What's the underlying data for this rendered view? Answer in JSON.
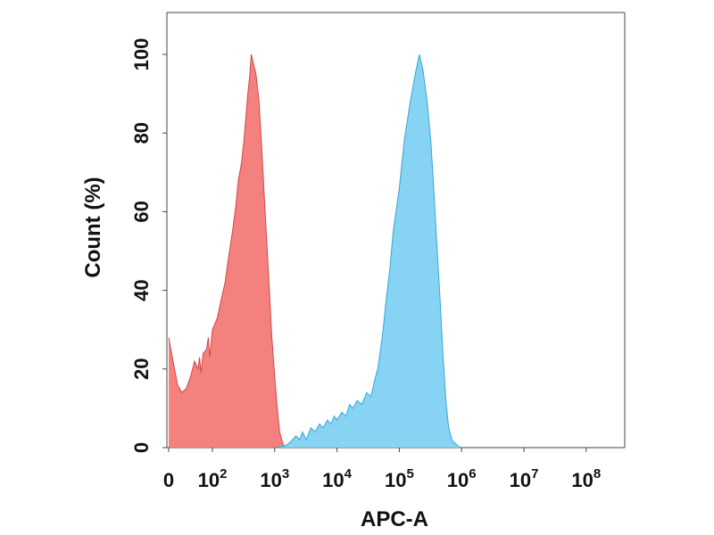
{
  "chart_data": {
    "type": "area",
    "title": "",
    "xlabel": "APC-A",
    "ylabel": "Count  (%)",
    "x_scale": "log",
    "xlim": [
      0,
      100000000
    ],
    "ylim": [
      0,
      100
    ],
    "grid": false,
    "x_ticks": [
      {
        "value": 0,
        "base": "0",
        "exp": ""
      },
      {
        "value": 100,
        "base": "10",
        "exp": "2"
      },
      {
        "value": 1000,
        "base": "10",
        "exp": "3"
      },
      {
        "value": 10000,
        "base": "10",
        "exp": "4"
      },
      {
        "value": 100000,
        "base": "10",
        "exp": "5"
      },
      {
        "value": 1000000,
        "base": "10",
        "exp": "6"
      },
      {
        "value": 10000000,
        "base": "10",
        "exp": "7"
      },
      {
        "value": 100000000,
        "base": "10",
        "exp": "8"
      }
    ],
    "y_ticks": [
      "0",
      "20",
      "40",
      "60",
      "80",
      "100"
    ],
    "series": [
      {
        "color": "#f47a78",
        "stroke": "#d04848",
        "points": [
          [
            0,
            28
          ],
          [
            1,
            22
          ],
          [
            4,
            16
          ],
          [
            9,
            14
          ],
          [
            16,
            15
          ],
          [
            25,
            18
          ],
          [
            35,
            22
          ],
          [
            45,
            20
          ],
          [
            50,
            23
          ],
          [
            55,
            19
          ],
          [
            62,
            24
          ],
          [
            75,
            25
          ],
          [
            82,
            28
          ],
          [
            88,
            23
          ],
          [
            100,
            30
          ],
          [
            120,
            33
          ],
          [
            140,
            38
          ],
          [
            160,
            42
          ],
          [
            180,
            48
          ],
          [
            210,
            55
          ],
          [
            240,
            62
          ],
          [
            260,
            68
          ],
          [
            290,
            72
          ],
          [
            320,
            78
          ],
          [
            340,
            83
          ],
          [
            370,
            90
          ],
          [
            400,
            95
          ],
          [
            420,
            100
          ],
          [
            450,
            98
          ],
          [
            500,
            95
          ],
          [
            560,
            88
          ],
          [
            600,
            80
          ],
          [
            650,
            70
          ],
          [
            700,
            60
          ],
          [
            760,
            50
          ],
          [
            820,
            40
          ],
          [
            900,
            28
          ],
          [
            1000,
            18
          ],
          [
            1100,
            10
          ],
          [
            1200,
            4
          ],
          [
            1350,
            1
          ],
          [
            1500,
            0
          ]
        ]
      },
      {
        "color": "#7fd1f2",
        "stroke": "#3aa6d4",
        "points": [
          [
            1000,
            0
          ],
          [
            1500,
            0.5
          ],
          [
            1800,
            1.5
          ],
          [
            2200,
            3
          ],
          [
            2500,
            2
          ],
          [
            2800,
            4
          ],
          [
            3200,
            2
          ],
          [
            3800,
            5
          ],
          [
            4500,
            4
          ],
          [
            5200,
            6
          ],
          [
            6000,
            5
          ],
          [
            7000,
            7
          ],
          [
            8000,
            6
          ],
          [
            9000,
            8
          ],
          [
            10000,
            7
          ],
          [
            12000,
            9
          ],
          [
            14000,
            8
          ],
          [
            16000,
            11
          ],
          [
            18000,
            10
          ],
          [
            21000,
            12
          ],
          [
            25000,
            11
          ],
          [
            30000,
            14
          ],
          [
            35000,
            13
          ],
          [
            40000,
            17
          ],
          [
            45000,
            20
          ],
          [
            50000,
            25
          ],
          [
            55000,
            30
          ],
          [
            60000,
            36
          ],
          [
            70000,
            45
          ],
          [
            80000,
            55
          ],
          [
            100000,
            66
          ],
          [
            120000,
            78
          ],
          [
            150000,
            88
          ],
          [
            180000,
            95
          ],
          [
            210000,
            100
          ],
          [
            240000,
            96
          ],
          [
            280000,
            88
          ],
          [
            320000,
            78
          ],
          [
            360000,
            65
          ],
          [
            400000,
            52
          ],
          [
            450000,
            38
          ],
          [
            500000,
            24
          ],
          [
            560000,
            12
          ],
          [
            620000,
            5
          ],
          [
            700000,
            2
          ],
          [
            800000,
            1
          ],
          [
            900000,
            0.3
          ],
          [
            1000000,
            0
          ]
        ]
      }
    ]
  }
}
